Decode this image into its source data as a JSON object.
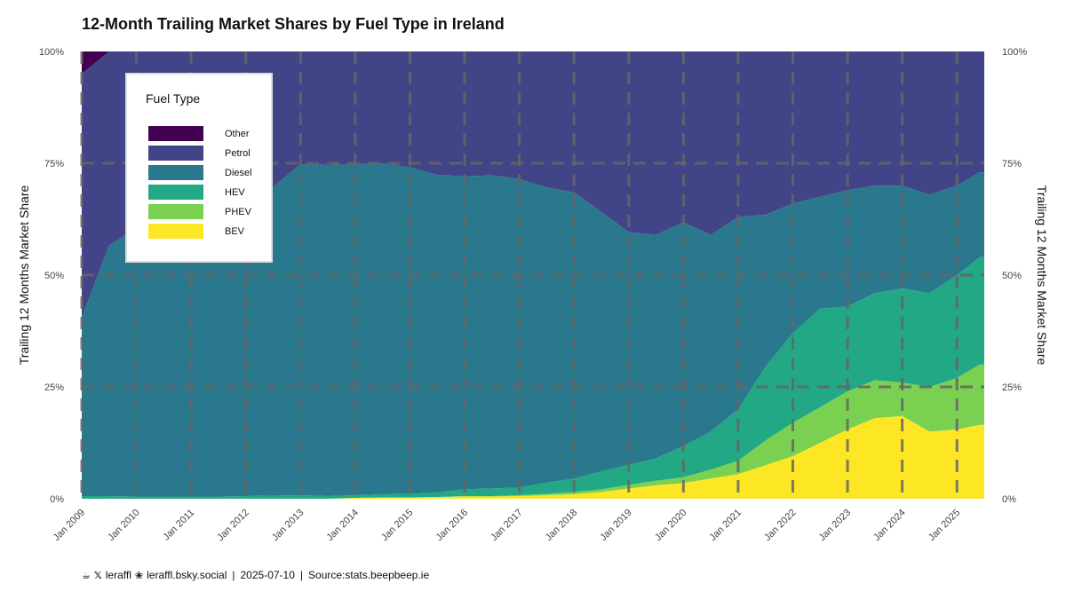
{
  "chart_data": {
    "type": "area",
    "title": "12-Month Trailing Market Shares by Fuel Type in Ireland",
    "ylabel": "Trailing 12 Months Market Share",
    "ylabel_right": "Trailing 12 Months Market Share",
    "xlabel": "",
    "ylim": [
      0,
      100
    ],
    "y_ticks": [
      "0%",
      "25%",
      "50%",
      "75%",
      "100%"
    ],
    "x_ticks": [
      "Jan 2009",
      "Jan 2010",
      "Jan 2011",
      "Jan 2012",
      "Jan 2013",
      "Jan 2014",
      "Jan 2015",
      "Jan 2016",
      "Jan 2017",
      "Jan 2018",
      "Jan 2019",
      "Jan 2020",
      "Jan 2021",
      "Jan 2022",
      "Jan 2023",
      "Jan 2024",
      "Jan 2025"
    ],
    "grid": true,
    "stacked": true,
    "legend": {
      "title": "Fuel Type",
      "placement": "top-left",
      "items": [
        {
          "label": "Other",
          "color": "#440154"
        },
        {
          "label": "Petrol",
          "color": "#414487"
        },
        {
          "label": "Diesel",
          "color": "#2a788e"
        },
        {
          "label": "HEV",
          "color": "#22a884"
        },
        {
          "label": "PHEV",
          "color": "#7ad151"
        },
        {
          "label": "BEV",
          "color": "#fde725"
        }
      ]
    },
    "x": [
      "2009-01",
      "2009-07",
      "2010-01",
      "2010-07",
      "2011-01",
      "2011-07",
      "2012-01",
      "2012-07",
      "2013-01",
      "2013-07",
      "2014-01",
      "2014-07",
      "2015-01",
      "2015-07",
      "2016-01",
      "2016-07",
      "2017-01",
      "2017-07",
      "2018-01",
      "2018-07",
      "2019-01",
      "2019-07",
      "2020-01",
      "2020-07",
      "2021-01",
      "2021-07",
      "2022-01",
      "2022-07",
      "2023-01",
      "2023-07",
      "2024-01",
      "2024-07",
      "2025-01",
      "2025-06"
    ],
    "series": [
      {
        "name": "BEV",
        "color": "#fde725",
        "values": [
          0,
          0,
          0,
          0,
          0,
          0,
          0,
          0,
          0,
          0,
          0.2,
          0.3,
          0.3,
          0.4,
          0.5,
          0.5,
          0.6,
          0.8,
          1.0,
          1.5,
          2.3,
          3.0,
          3.5,
          4.5,
          5.5,
          7.5,
          9.5,
          12.5,
          15.5,
          18,
          18.5,
          15,
          15.5,
          16.5
        ]
      },
      {
        "name": "PHEV",
        "color": "#7ad151",
        "values": [
          0,
          0,
          0,
          0,
          0,
          0,
          0,
          0,
          0,
          0,
          0,
          0,
          0,
          0,
          0.1,
          0.1,
          0.2,
          0.3,
          0.5,
          0.6,
          0.8,
          1.0,
          1.3,
          2.0,
          3.0,
          5.5,
          7.5,
          8.0,
          8.5,
          8.5,
          7.5,
          10.0,
          11.5,
          13.5
        ]
      },
      {
        "name": "HEV",
        "color": "#22a884",
        "values": [
          0.6,
          0.6,
          0.5,
          0.5,
          0.5,
          0.5,
          0.6,
          0.7,
          0.8,
          0.6,
          0.6,
          0.7,
          0.8,
          1.0,
          1.5,
          1.7,
          1.7,
          2.5,
          3.0,
          4.0,
          4.5,
          5.0,
          7.0,
          8.5,
          11.5,
          16.5,
          20.0,
          22.0,
          19.0,
          19.5,
          21.0,
          21.0,
          23.0,
          24.0
        ]
      },
      {
        "name": "Diesel",
        "color": "#2a788e",
        "values": [
          40,
          56,
          60,
          62,
          64,
          65,
          67,
          69,
          74,
          74,
          74,
          74,
          73,
          71,
          70,
          70,
          69,
          66,
          64,
          58,
          52,
          50,
          50,
          44,
          43,
          34,
          29,
          25,
          26,
          24,
          23,
          22,
          20,
          19
        ]
      },
      {
        "name": "Petrol",
        "color": "#414487",
        "values": [
          54.4,
          43.4,
          39.5,
          37.5,
          35.5,
          34.5,
          32.4,
          30.3,
          25.2,
          25.4,
          25.2,
          25.0,
          25.9,
          27.6,
          27.9,
          27.7,
          28.5,
          30.4,
          31.5,
          35.9,
          40.4,
          41.0,
          38.2,
          41.0,
          37.0,
          36.5,
          34.0,
          32.5,
          31.0,
          30.0,
          30.0,
          32.0,
          30.0,
          27.0
        ]
      },
      {
        "name": "Other",
        "color": "#440154",
        "values": [
          5,
          0,
          0,
          0,
          0,
          0,
          0,
          0,
          0,
          0,
          0,
          0,
          0,
          0,
          0,
          0,
          0,
          0,
          0,
          0,
          0,
          0,
          0,
          0,
          0,
          0,
          0,
          0,
          0,
          0,
          0,
          0,
          0,
          0
        ]
      }
    ]
  },
  "caption": {
    "handle_x": "leraffl",
    "handle_bsky": "leraffl.bsky.social",
    "date": "2025-07-10",
    "source": "Source:stats.beepbeep.ie"
  }
}
